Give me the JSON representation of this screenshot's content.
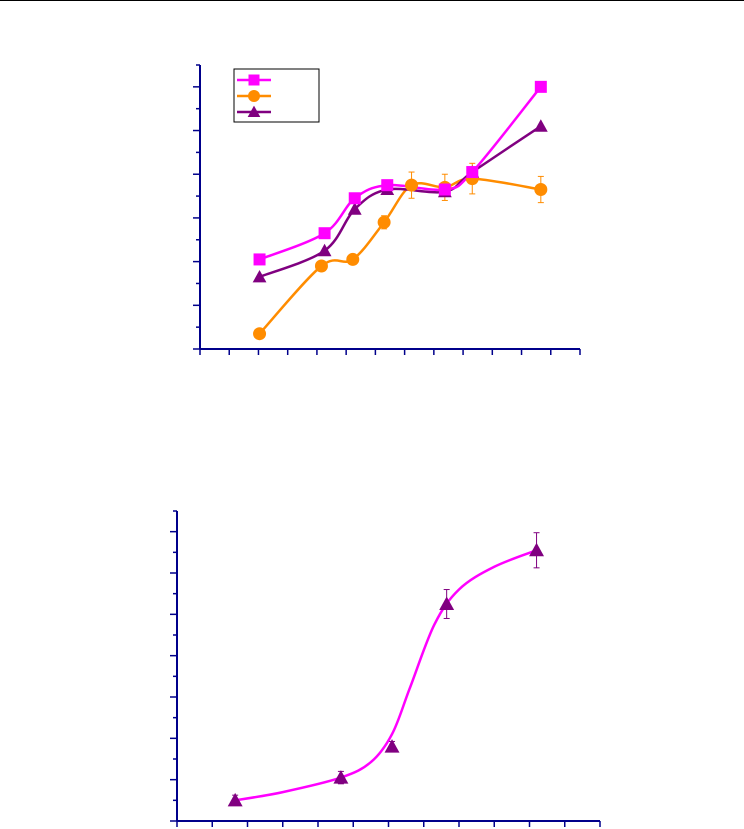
{
  "chart_data": [
    {
      "type": "line",
      "grid": false,
      "legend": {
        "placement": "top-left",
        "entries": [
          {
            "marker": "square",
            "color": "#FF00FF"
          },
          {
            "marker": "circle",
            "color": "#FF8C00"
          },
          {
            "marker": "triangle",
            "color": "#800080"
          }
        ]
      },
      "series": [
        {
          "marker": "square",
          "color": "#FF00FF",
          "x": [
            0.72,
            2.38,
            3.15,
            3.98,
            5.45,
            6.15,
            7.9
          ],
          "y": [
            2.05,
            2.65,
            3.45,
            3.75,
            3.65,
            4.05,
            6.0
          ]
        },
        {
          "marker": "circle",
          "color": "#FF8C00",
          "x": [
            0.72,
            2.3,
            3.1,
            3.9,
            4.6,
            5.45,
            6.15,
            7.9
          ],
          "y": [
            0.35,
            1.9,
            2.05,
            2.9,
            3.75,
            3.7,
            3.9,
            3.65
          ],
          "err": [
            0.0,
            0.0,
            0.0,
            0.15,
            0.3,
            0.3,
            0.35,
            0.3
          ]
        },
        {
          "marker": "triangle",
          "color": "#800080",
          "x": [
            0.72,
            2.38,
            3.15,
            3.98,
            5.45,
            6.15,
            7.9
          ],
          "y": [
            1.65,
            2.25,
            3.2,
            3.65,
            3.6,
            4.05,
            5.1
          ]
        }
      ],
      "xlim": [
        -0.8,
        8.9
      ],
      "ylim": [
        0,
        6.5
      ],
      "x_minor_ticks": 13,
      "y_minor_ticks": 13
    },
    {
      "type": "scatter",
      "grid": false,
      "series": [
        {
          "marker": "triangle",
          "color": "#800080",
          "x": [
            0.65,
            3.65,
            5.1,
            6.65,
            9.2
          ],
          "y": [
            1.0,
            2.1,
            3.6,
            10.5,
            13.1
          ],
          "err": [
            0.25,
            0.3,
            0.25,
            0.7,
            0.85
          ]
        }
      ],
      "fit": {
        "color": "#FF00FF",
        "x": [
          0.65,
          2.0,
          3.65,
          4.5,
          5.1,
          5.6,
          6.3,
          7.0,
          8.0,
          9.2
        ],
        "y": [
          1.0,
          1.4,
          2.1,
          2.85,
          4.2,
          6.4,
          9.5,
          11.2,
          12.3,
          13.1
        ]
      },
      "xlim": [
        -1,
        11
      ],
      "ylim": [
        0,
        15
      ],
      "x_minor_ticks": 12,
      "y_minor_ticks": 15
    }
  ]
}
